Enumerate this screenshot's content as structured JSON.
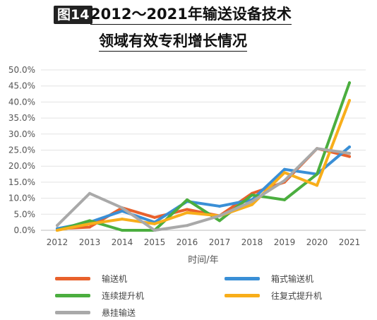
{
  "title": {
    "badge": "图14",
    "line1": "2012～2021年输送设备技术",
    "line2": "领域有效专利增长情况"
  },
  "chart_data": {
    "type": "line",
    "xlabel": "时间/年",
    "ylabel": "",
    "categories": [
      "2012",
      "2013",
      "2014",
      "2015",
      "2016",
      "2017",
      "2018",
      "2019",
      "2020",
      "2021"
    ],
    "ylim": [
      0,
      50
    ],
    "ytick_labels": [
      "0.0%",
      "5.0%",
      "10.0%",
      "15.0%",
      "20.0%",
      "25.0%",
      "30.0%",
      "35.0%",
      "40.0%",
      "45.0%",
      "50.0%"
    ],
    "grid": true,
    "legend_position": "bottom",
    "series": [
      {
        "name": "输送机",
        "color": "#E8612C",
        "values": [
          0.5,
          1.0,
          7.0,
          4.0,
          6.5,
          4.5,
          11.5,
          15.0,
          25.5,
          23.0
        ]
      },
      {
        "name": "箱式输送机",
        "color": "#3A8FD6",
        "values": [
          0.5,
          2.5,
          6.0,
          2.5,
          9.0,
          7.5,
          9.5,
          19.0,
          17.5,
          26.0
        ]
      },
      {
        "name": "连续提升机",
        "color": "#4BAE3F",
        "values": [
          0.0,
          3.0,
          0.0,
          0.0,
          9.5,
          3.0,
          11.0,
          9.5,
          17.5,
          46.0
        ]
      },
      {
        "name": "往复式提升机",
        "color": "#F8AE1A",
        "values": [
          0.0,
          2.0,
          3.5,
          2.0,
          5.5,
          4.5,
          8.0,
          18.0,
          14.0,
          40.5
        ]
      },
      {
        "name": "悬挂输送",
        "color": "#A9A9A9",
        "values": [
          1.5,
          11.5,
          7.0,
          0.0,
          1.5,
          4.5,
          9.0,
          15.5,
          25.5,
          24.0
        ]
      }
    ]
  }
}
